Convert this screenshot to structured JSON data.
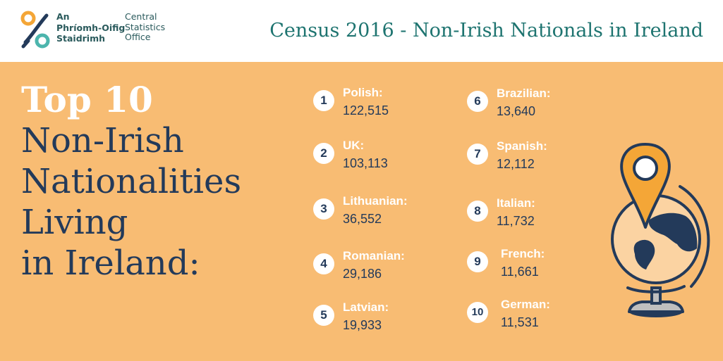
{
  "header": {
    "org_irish_lines": [
      "An",
      "Phríomh-Oifig",
      "Staidrimh"
    ],
    "org_english_lines": [
      "Central",
      "Statistics",
      "Office"
    ],
    "title": "Census 2016 - Non-Irish Nationals in Ireland"
  },
  "heading": {
    "line1": "Top 10",
    "line2": "Non-Irish",
    "line3": "Nationalities",
    "line4": "Living",
    "line5": "in Ireland:"
  },
  "nationalities": [
    {
      "rank": "1",
      "name": "Polish:",
      "count": "122,515"
    },
    {
      "rank": "2",
      "name": "UK:",
      "count": "103,113"
    },
    {
      "rank": "3",
      "name": "Lithuanian:",
      "count": "36,552"
    },
    {
      "rank": "4",
      "name": "Romanian:",
      "count": "29,186"
    },
    {
      "rank": "5",
      "name": "Latvian:",
      "count": "19,933"
    },
    {
      "rank": "6",
      "name": "Brazilian:",
      "count": "13,640"
    },
    {
      "rank": "7",
      "name": "Spanish:",
      "count": "12,112"
    },
    {
      "rank": "8",
      "name": "Italian:",
      "count": "11,732"
    },
    {
      "rank": "9",
      "name": "French:",
      "count": "11,661"
    },
    {
      "rank": "10",
      "name": "German:",
      "count": "11,531"
    }
  ],
  "colors": {
    "panel": "#f8bc73",
    "navy": "#233a5a",
    "teal": "#1e7470",
    "logo_orange": "#f4a637",
    "logo_teal": "#4cb5ad"
  },
  "icons": [
    "cso-logo-icon",
    "globe-with-map-pin-icon"
  ]
}
